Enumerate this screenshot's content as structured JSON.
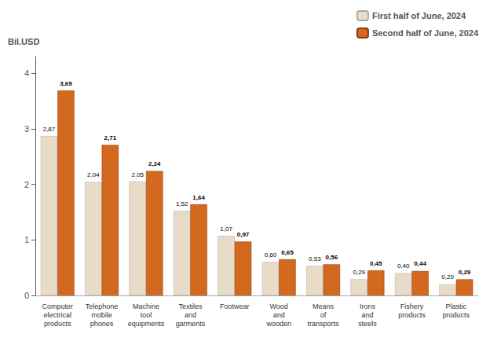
{
  "chart_data": {
    "type": "bar",
    "ylabel": "Bil.USD",
    "categories": [
      "Computer\nelectrical\nproducts",
      "Telephone\nmobile\nphones",
      "Machine\ntool\nequipments",
      "Textiles\nand\ngarments",
      "Footwear",
      "Wood\nand\nwooden",
      "Means\nof\ntransports",
      "Irons\nand\nsteels",
      "Fishery\nproducts",
      "Plastic\nproducts"
    ],
    "series": [
      {
        "name": "First half of June, 2024",
        "color": "#E8DCC8",
        "values": [
          2.87,
          2.04,
          2.05,
          1.52,
          1.07,
          0.6,
          0.53,
          0.29,
          0.4,
          0.2
        ],
        "value_labels": [
          "2,87",
          "2,04",
          "2,05",
          "1,52",
          "1,07",
          "0,60",
          "0,53",
          "0,29",
          "0,40",
          "0,20"
        ]
      },
      {
        "name": "Second half of June, 2024",
        "color": "#D2691E",
        "values": [
          3.69,
          2.71,
          2.24,
          1.64,
          0.97,
          0.65,
          0.56,
          0.45,
          0.44,
          0.29
        ],
        "value_labels": [
          "3,69",
          "2,71",
          "2,24",
          "1,64",
          "0,97",
          "0,65",
          "0,56",
          "0,45",
          "0,44",
          "0,29"
        ]
      }
    ],
    "ylim": [
      0,
      4.3
    ],
    "yticks": [
      0,
      1,
      2,
      3,
      4
    ],
    "grid": false,
    "legend": "upper right",
    "data_labels": true
  }
}
